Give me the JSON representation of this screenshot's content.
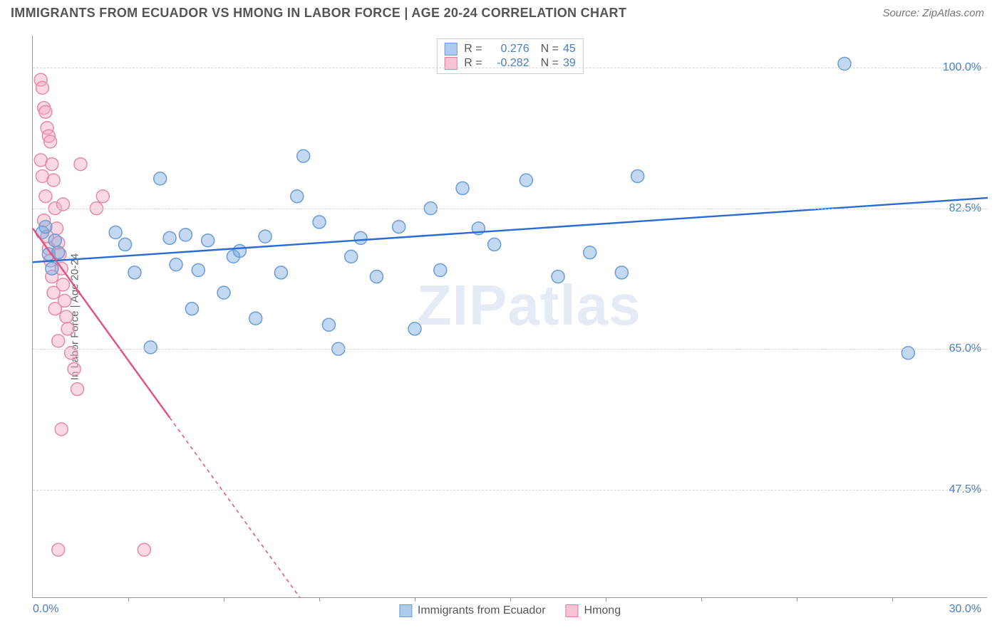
{
  "header": {
    "title": "IMMIGRANTS FROM ECUADOR VS HMONG IN LABOR FORCE | AGE 20-24 CORRELATION CHART",
    "source": "Source: ZipAtlas.com"
  },
  "chart": {
    "type": "scatter",
    "background_color": "#ffffff",
    "grid_color": "#d5d5d5",
    "axis_color": "#999999",
    "y_axis_label": "In Labor Force | Age 20-24",
    "x_min_label": "0.0%",
    "x_max_label": "30.0%",
    "xlim": [
      0,
      30
    ],
    "ylim": [
      34,
      104
    ],
    "y_ticks": [
      {
        "value": 100.0,
        "label": "100.0%"
      },
      {
        "value": 82.5,
        "label": "82.5%"
      },
      {
        "value": 65.0,
        "label": "65.0%"
      },
      {
        "value": 47.5,
        "label": "47.5%"
      }
    ],
    "x_tick_positions": [
      3,
      6,
      9,
      12,
      15,
      18,
      21,
      24,
      27
    ],
    "watermark": "ZIPatlas",
    "marker_radius": 9,
    "marker_stroke_width": 1.5,
    "line_width": 2.4,
    "series": [
      {
        "name": "Immigrants from Ecuador",
        "color_fill": "rgba(122,168,224,0.45)",
        "color_stroke": "#6a9cd6",
        "swatch_fill": "#aecbed",
        "swatch_border": "#6a9cd6",
        "line_color": "#2a6bd4",
        "r": "0.276",
        "n": "45",
        "regression": {
          "x1": 0,
          "y1": 75.8,
          "x2": 30,
          "y2": 83.8,
          "dashed_after": null
        },
        "points": [
          [
            0.3,
            79.5
          ],
          [
            0.4,
            80.2
          ],
          [
            0.5,
            76.8
          ],
          [
            0.6,
            75.0
          ],
          [
            0.7,
            78.5
          ],
          [
            0.8,
            77.0
          ],
          [
            2.6,
            79.5
          ],
          [
            2.9,
            78.0
          ],
          [
            3.2,
            74.5
          ],
          [
            3.7,
            65.2
          ],
          [
            4.0,
            86.2
          ],
          [
            4.3,
            78.8
          ],
          [
            4.5,
            75.5
          ],
          [
            4.8,
            79.2
          ],
          [
            5.0,
            70.0
          ],
          [
            5.2,
            74.8
          ],
          [
            5.5,
            78.5
          ],
          [
            6.0,
            72.0
          ],
          [
            6.3,
            76.5
          ],
          [
            6.5,
            77.2
          ],
          [
            7.0,
            68.8
          ],
          [
            7.3,
            79.0
          ],
          [
            7.8,
            74.5
          ],
          [
            8.3,
            84.0
          ],
          [
            8.5,
            89.0
          ],
          [
            9.0,
            80.8
          ],
          [
            9.3,
            68.0
          ],
          [
            9.6,
            65.0
          ],
          [
            10.0,
            76.5
          ],
          [
            10.3,
            78.8
          ],
          [
            10.8,
            74.0
          ],
          [
            11.5,
            80.2
          ],
          [
            12.0,
            67.5
          ],
          [
            12.5,
            82.5
          ],
          [
            13.5,
            85.0
          ],
          [
            14.0,
            80.0
          ],
          [
            14.5,
            78.0
          ],
          [
            15.5,
            86.0
          ],
          [
            16.5,
            74.0
          ],
          [
            17.5,
            77.0
          ],
          [
            18.5,
            74.5
          ],
          [
            19.0,
            86.5
          ],
          [
            25.5,
            100.5
          ],
          [
            27.5,
            64.5
          ],
          [
            12.8,
            74.8
          ]
        ]
      },
      {
        "name": "Hmong",
        "color_fill": "rgba(244,170,192,0.45)",
        "color_stroke": "#e68aa6",
        "swatch_fill": "#f7c4d3",
        "swatch_border": "#e67a9b",
        "line_color": "#e64e7e",
        "r": "-0.282",
        "n": "39",
        "regression": {
          "x1": 0,
          "y1": 80.0,
          "x2": 8.4,
          "y2": 34.0,
          "dashed_after": 4.3
        },
        "points": [
          [
            0.25,
            98.5
          ],
          [
            0.3,
            97.5
          ],
          [
            0.35,
            95.0
          ],
          [
            0.4,
            94.5
          ],
          [
            0.45,
            92.5
          ],
          [
            0.5,
            91.5
          ],
          [
            0.55,
            90.8
          ],
          [
            0.25,
            88.5
          ],
          [
            0.6,
            88.0
          ],
          [
            0.3,
            86.5
          ],
          [
            0.65,
            86.0
          ],
          [
            0.4,
            84.0
          ],
          [
            0.7,
            82.5
          ],
          [
            0.35,
            81.0
          ],
          [
            0.75,
            80.0
          ],
          [
            0.45,
            79.0
          ],
          [
            0.8,
            78.2
          ],
          [
            0.5,
            77.5
          ],
          [
            0.85,
            76.8
          ],
          [
            0.55,
            76.0
          ],
          [
            0.9,
            75.0
          ],
          [
            0.6,
            74.0
          ],
          [
            0.95,
            73.0
          ],
          [
            0.65,
            72.0
          ],
          [
            1.0,
            71.0
          ],
          [
            0.7,
            70.0
          ],
          [
            1.05,
            69.0
          ],
          [
            1.1,
            67.5
          ],
          [
            0.8,
            66.0
          ],
          [
            1.2,
            64.5
          ],
          [
            1.3,
            62.5
          ],
          [
            1.4,
            60.0
          ],
          [
            0.9,
            55.0
          ],
          [
            1.5,
            88.0
          ],
          [
            2.0,
            82.5
          ],
          [
            2.2,
            84.0
          ],
          [
            0.8,
            40.0
          ],
          [
            3.5,
            40.0
          ],
          [
            0.95,
            83.0
          ]
        ]
      }
    ],
    "legend_bottom": [
      {
        "label": "Immigrants from Ecuador",
        "series": 0
      },
      {
        "label": "Hmong",
        "series": 1
      }
    ]
  }
}
